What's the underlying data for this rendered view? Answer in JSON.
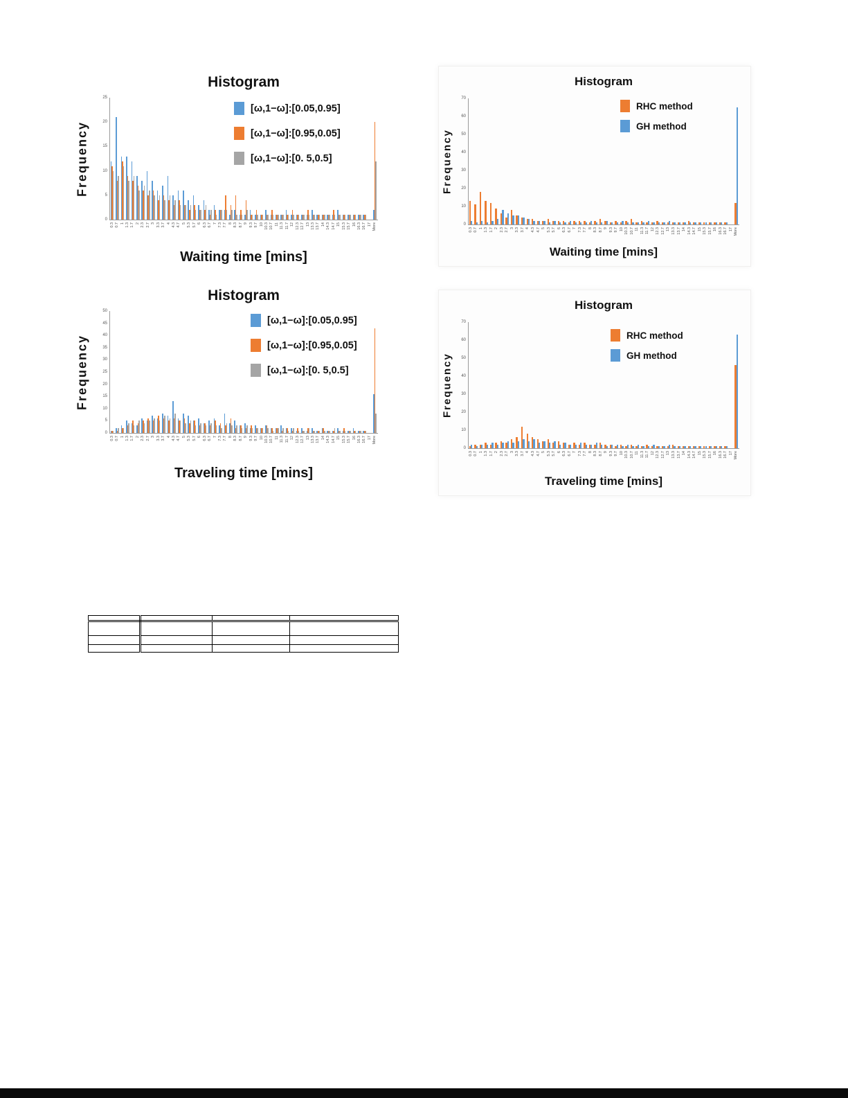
{
  "chart_data": [
    {
      "type": "bar",
      "title": "Histogram",
      "ylabel": "Frequency",
      "xlabel": "Waiting time [mins]",
      "ylim": [
        0,
        25
      ],
      "ytick_step": 5,
      "grid": false,
      "legend_position": "top-right",
      "categories": [
        "0.3",
        "0.7",
        "1",
        "1.3",
        "1.7",
        "2",
        "2.3",
        "2.7",
        "3",
        "3.3",
        "3.7",
        "4",
        "4.3",
        "4.7",
        "5",
        "5.3",
        "5.7",
        "6",
        "6.3",
        "6.7",
        "7",
        "7.3",
        "7.7",
        "8",
        "8.3",
        "8.7",
        "9",
        "9.3",
        "9.7",
        "10",
        "10.3",
        "10.7",
        "11",
        "11.3",
        "11.7",
        "12",
        "12.3",
        "12.7",
        "13",
        "13.3",
        "13.7",
        "14",
        "14.3",
        "14.7",
        "15",
        "15.3",
        "15.7",
        "16",
        "16.3",
        "16.7",
        "17",
        "More"
      ],
      "series": [
        {
          "name": "[ω,1−ω]:[0.05,0.95]",
          "color": "#5B9BD5",
          "values": [
            12,
            21,
            13,
            13,
            12,
            9,
            8,
            10,
            8,
            6,
            7,
            9,
            5,
            6,
            6,
            4,
            5,
            3,
            4,
            2,
            3,
            2,
            2,
            1,
            2,
            1,
            1,
            2,
            1,
            1,
            2,
            1,
            1,
            1,
            2,
            1,
            1,
            1,
            1,
            2,
            1,
            1,
            1,
            1,
            2,
            1,
            1,
            1,
            1,
            1,
            0,
            2
          ]
        },
        {
          "name": "[ω,1−ω]:[0.95,0.05]",
          "color": "#ED7D31",
          "values": [
            11,
            8,
            12,
            9,
            8,
            7,
            6,
            5,
            6,
            4,
            5,
            4,
            3,
            4,
            3,
            2,
            3,
            2,
            2,
            1,
            2,
            2,
            5,
            3,
            5,
            2,
            4,
            1,
            2,
            1,
            1,
            2,
            1,
            1,
            1,
            2,
            1,
            1,
            2,
            1,
            1,
            1,
            1,
            2,
            1,
            1,
            1,
            1,
            1,
            1,
            0,
            20
          ]
        },
        {
          "name": "[ω,1−ω]:[0. 5,0.5]",
          "color": "#A5A5A5",
          "values": [
            10,
            9,
            11,
            8,
            9,
            6,
            7,
            6,
            5,
            5,
            4,
            5,
            4,
            3,
            3,
            3,
            2,
            2,
            3,
            2,
            1,
            2,
            2,
            2,
            1,
            1,
            2,
            1,
            1,
            1,
            1,
            1,
            1,
            1,
            1,
            1,
            1,
            1,
            1,
            1,
            1,
            1,
            1,
            1,
            1,
            1,
            1,
            1,
            1,
            1,
            0,
            12
          ]
        }
      ]
    },
    {
      "type": "bar",
      "title": "Histogram",
      "ylabel": "Frequency",
      "xlabel": "Waiting time [mins]",
      "ylim": [
        0,
        70
      ],
      "ytick_step": 10,
      "grid": false,
      "legend_position": "top-right",
      "categories": [
        "0.3",
        "0.7",
        "1",
        "1.3",
        "1.7",
        "2",
        "2.3",
        "2.7",
        "3",
        "3.3",
        "3.7",
        "4",
        "4.3",
        "4.7",
        "5",
        "5.3",
        "5.7",
        "6",
        "6.3",
        "6.7",
        "7",
        "7.3",
        "7.7",
        "8",
        "8.3",
        "8.7",
        "9",
        "9.3",
        "9.7",
        "10",
        "10.3",
        "10.7",
        "11",
        "11.3",
        "11.7",
        "12",
        "12.3",
        "12.7",
        "13",
        "13.3",
        "13.7",
        "14",
        "14.3",
        "14.7",
        "15",
        "15.3",
        "15.7",
        "16",
        "16.3",
        "16.7",
        "17",
        "More"
      ],
      "series": [
        {
          "name": "RHC method",
          "color": "#ED7D31",
          "values": [
            13,
            11,
            18,
            13,
            12,
            9,
            6,
            4,
            8,
            5,
            4,
            3,
            3,
            2,
            2,
            3,
            2,
            2,
            2,
            1,
            2,
            2,
            2,
            1,
            2,
            3,
            2,
            1,
            2,
            1,
            2,
            3,
            1,
            2,
            1,
            1,
            2,
            1,
            1,
            1,
            1,
            1,
            2,
            1,
            1,
            1,
            1,
            1,
            1,
            1,
            0,
            12
          ]
        },
        {
          "name": "GH method",
          "color": "#5B9BD5",
          "values": [
            2,
            1,
            2,
            1,
            2,
            3,
            8,
            6,
            5,
            5,
            4,
            3,
            2,
            2,
            2,
            1,
            2,
            1,
            1,
            2,
            1,
            1,
            1,
            2,
            1,
            1,
            2,
            1,
            1,
            2,
            1,
            1,
            1,
            1,
            2,
            1,
            1,
            1,
            2,
            1,
            1,
            1,
            1,
            1,
            1,
            1,
            1,
            1,
            1,
            1,
            0,
            65
          ]
        }
      ]
    },
    {
      "type": "bar",
      "title": "Histogram",
      "ylabel": "Frequency",
      "xlabel": "Traveling time [mins]",
      "ylim": [
        0,
        50
      ],
      "ytick_step": 5,
      "grid": false,
      "legend_position": "top-right",
      "categories": [
        "0.3",
        "0.7",
        "1",
        "1.3",
        "1.7",
        "2",
        "2.3",
        "2.7",
        "3",
        "3.3",
        "3.7",
        "4",
        "4.3",
        "4.7",
        "5",
        "5.3",
        "5.7",
        "6",
        "6.3",
        "6.7",
        "7",
        "7.3",
        "7.7",
        "8",
        "8.3",
        "8.7",
        "9",
        "9.3",
        "9.7",
        "10",
        "10.3",
        "10.7",
        "11",
        "11.3",
        "11.7",
        "12",
        "12.3",
        "12.7",
        "13",
        "13.3",
        "13.7",
        "14",
        "14.3",
        "14.7",
        "15",
        "15.3",
        "15.7",
        "16",
        "16.3",
        "16.7",
        "17",
        "More"
      ],
      "series": [
        {
          "name": "[ω,1−ω]:[0.05,0.95]",
          "color": "#5B9BD5",
          "values": [
            1,
            2,
            3,
            5,
            4,
            3,
            6,
            5,
            7,
            6,
            8,
            7,
            13,
            6,
            8,
            7,
            5,
            6,
            4,
            5,
            6,
            3,
            8,
            4,
            5,
            3,
            4,
            2,
            3,
            2,
            3,
            2,
            2,
            3,
            2,
            2,
            1,
            2,
            1,
            2,
            1,
            2,
            1,
            1,
            2,
            1,
            1,
            2,
            1,
            1,
            0,
            16
          ]
        },
        {
          "name": "[ω,1−ω]:[0.95,0.05]",
          "color": "#ED7D31",
          "values": [
            1,
            1,
            2,
            3,
            5,
            4,
            5,
            6,
            5,
            7,
            6,
            5,
            6,
            5,
            6,
            4,
            5,
            3,
            4,
            3,
            5,
            4,
            3,
            6,
            2,
            3,
            2,
            3,
            2,
            2,
            3,
            2,
            2,
            1,
            2,
            1,
            2,
            1,
            2,
            1,
            1,
            2,
            1,
            1,
            1,
            2,
            1,
            1,
            1,
            1,
            0,
            43
          ]
        },
        {
          "name": "[ω,1−ω]:[0. 5,0.5]",
          "color": "#A5A5A5",
          "values": [
            1,
            2,
            2,
            4,
            3,
            5,
            4,
            5,
            6,
            5,
            7,
            6,
            8,
            5,
            4,
            5,
            3,
            4,
            3,
            4,
            3,
            2,
            4,
            3,
            3,
            2,
            3,
            2,
            2,
            2,
            2,
            1,
            2,
            2,
            1,
            2,
            1,
            1,
            2,
            1,
            1,
            1,
            1,
            2,
            1,
            1,
            1,
            1,
            1,
            1,
            0,
            8
          ]
        }
      ]
    },
    {
      "type": "bar",
      "title": "Histogram",
      "ylabel": "Frequency",
      "xlabel": "Traveling time [mins]",
      "ylim": [
        0,
        70
      ],
      "ytick_step": 10,
      "grid": false,
      "legend_position": "top-right",
      "categories": [
        "0.3",
        "0.7",
        "1",
        "1.3",
        "1.7",
        "2",
        "2.3",
        "2.7",
        "3",
        "3.3",
        "3.7",
        "4",
        "4.3",
        "4.7",
        "5",
        "5.3",
        "5.7",
        "6",
        "6.3",
        "6.7",
        "7",
        "7.3",
        "7.7",
        "8",
        "8.3",
        "8.7",
        "9",
        "9.3",
        "9.7",
        "10",
        "10.3",
        "10.7",
        "11",
        "11.3",
        "11.7",
        "12",
        "12.3",
        "12.7",
        "13",
        "13.3",
        "13.7",
        "14",
        "14.3",
        "14.7",
        "15",
        "15.3",
        "15.7",
        "16",
        "16.3",
        "16.7",
        "17",
        "More"
      ],
      "series": [
        {
          "name": "RHC method",
          "color": "#ED7D31",
          "values": [
            1,
            2,
            2,
            3,
            2,
            3,
            4,
            3,
            5,
            6,
            12,
            8,
            6,
            5,
            4,
            5,
            3,
            4,
            3,
            2,
            3,
            2,
            3,
            2,
            2,
            3,
            2,
            2,
            1,
            2,
            1,
            2,
            1,
            1,
            2,
            1,
            1,
            1,
            1,
            2,
            1,
            1,
            1,
            1,
            1,
            1,
            1,
            1,
            1,
            1,
            0,
            46
          ]
        },
        {
          "name": "GH method",
          "color": "#5B9BD5",
          "values": [
            2,
            1,
            2,
            2,
            3,
            2,
            3,
            4,
            3,
            4,
            5,
            4,
            5,
            3,
            4,
            3,
            4,
            2,
            3,
            2,
            2,
            3,
            2,
            2,
            3,
            2,
            1,
            2,
            2,
            1,
            2,
            1,
            2,
            1,
            1,
            2,
            1,
            1,
            2,
            1,
            1,
            1,
            1,
            1,
            1,
            1,
            1,
            1,
            1,
            1,
            0,
            63
          ]
        }
      ]
    }
  ],
  "colors": {
    "series_blue": "#5B9BD5",
    "series_orange": "#ED7D31",
    "series_gray": "#A5A5A5",
    "axis": "#9a9a9a",
    "footer_bar": "#0a0a0a"
  }
}
